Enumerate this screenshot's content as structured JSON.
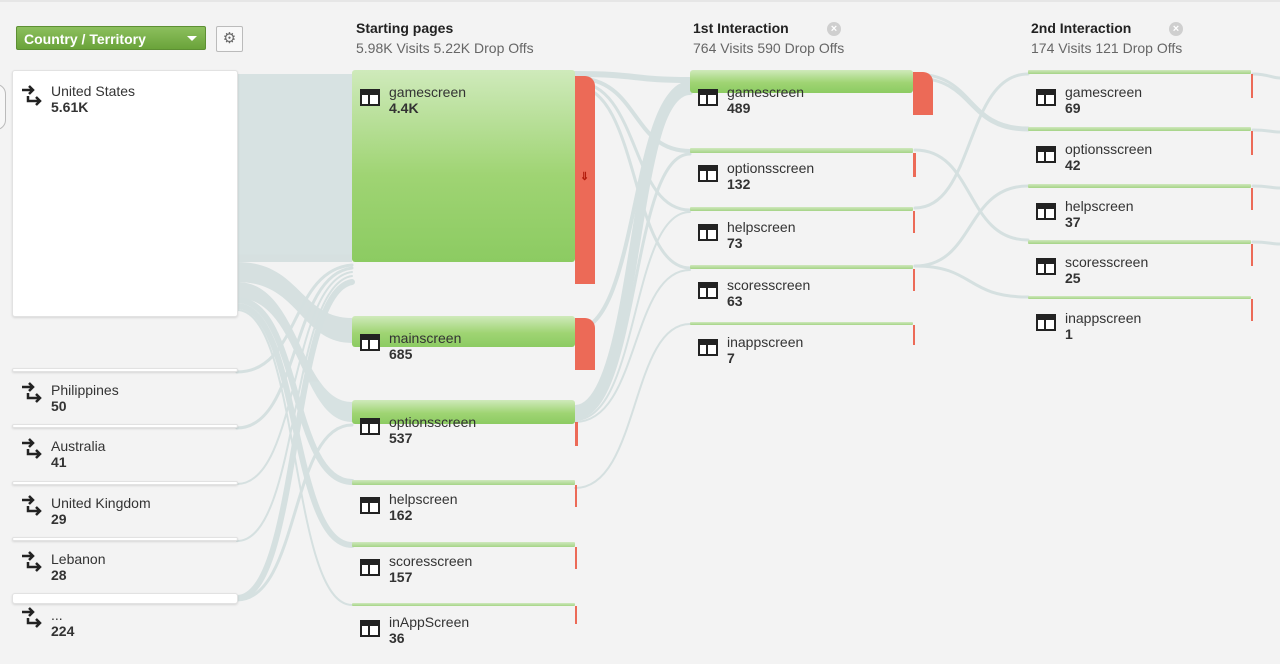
{
  "toolbar": {
    "dimension_label": "Country / Territory",
    "settings_icon": "gear-icon"
  },
  "columns": [
    {
      "title": "Starting pages",
      "summary": "5.98K Visits 5.22K Drop Offs"
    },
    {
      "title": "1st Interaction",
      "summary": "764 Visits 590 Drop Offs"
    },
    {
      "title": "2nd Interaction",
      "summary": "174 Visits 121 Drop Offs"
    }
  ],
  "countries": [
    {
      "name": "United States",
      "value": "5.61K"
    },
    {
      "name": "Philippines",
      "value": "50"
    },
    {
      "name": "Australia",
      "value": "41"
    },
    {
      "name": "United Kingdom",
      "value": "29"
    },
    {
      "name": "Lebanon",
      "value": "28"
    },
    {
      "name": "...",
      "value": "224"
    }
  ],
  "starting_pages": [
    {
      "name": "gamescreen",
      "value": "4.4K"
    },
    {
      "name": "mainscreen",
      "value": "685"
    },
    {
      "name": "optionsscreen",
      "value": "537"
    },
    {
      "name": "helpscreen",
      "value": "162"
    },
    {
      "name": "scoresscreen",
      "value": "157"
    },
    {
      "name": "inAppScreen",
      "value": "36"
    }
  ],
  "first_interaction": [
    {
      "name": "gamescreen",
      "value": "489"
    },
    {
      "name": "optionsscreen",
      "value": "132"
    },
    {
      "name": "helpscreen",
      "value": "73"
    },
    {
      "name": "scoresscreen",
      "value": "63"
    },
    {
      "name": "inappscreen",
      "value": "7"
    }
  ],
  "second_interaction": [
    {
      "name": "gamescreen",
      "value": "69"
    },
    {
      "name": "optionsscreen",
      "value": "42"
    },
    {
      "name": "helpscreen",
      "value": "37"
    },
    {
      "name": "scoresscreen",
      "value": "25"
    },
    {
      "name": "inappscreen",
      "value": "1"
    }
  ],
  "colors": {
    "flow": "#d7e2e2",
    "node_green": "#8ccb62",
    "drop_off_red": "#ec6a57",
    "dimension_green": "#78ae48"
  }
}
